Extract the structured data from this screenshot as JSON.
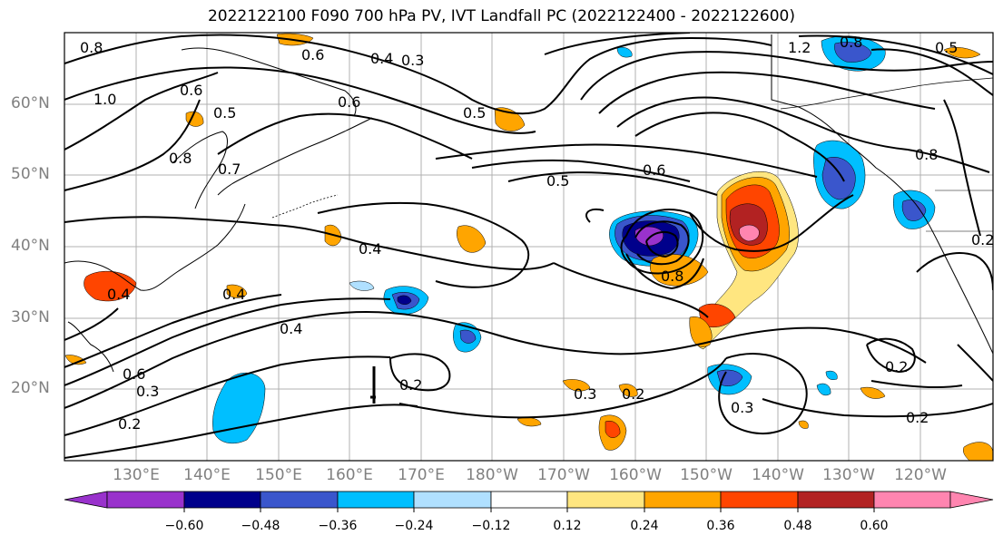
{
  "title": "2022122100 F090 700 hPa PV, IVT Landfall PC (2022122400 - 2022122600)",
  "latitude_labels": [
    "60°N",
    "50°N",
    "40°N",
    "30°N",
    "20°N"
  ],
  "longitude_labels": [
    "130°E",
    "140°E",
    "150°E",
    "160°E",
    "170°E",
    "180°W",
    "170°W",
    "160°W",
    "150°W",
    "140°W",
    "130°W",
    "120°W"
  ],
  "colorbar": {
    "tick_labels": [
      "−0.60",
      "−0.48",
      "−0.36",
      "−0.24",
      "−0.12",
      "0.12",
      "0.24",
      "0.36",
      "0.48",
      "0.60"
    ],
    "colors": [
      "#9932CC",
      "#00008B",
      "#3A56CC",
      "#00BFFF",
      "#B0E0FF",
      "#FFFFFF",
      "#FFE680",
      "#FFA500",
      "#FF4500",
      "#B22222",
      "#FF85B0"
    ]
  },
  "contour_labels": [
    "0.8",
    "0.6",
    "0.3",
    "1.0",
    "0.6",
    "0.4",
    "0.5",
    "0.5",
    "0.8",
    "0.7",
    "1.2",
    "0.8",
    "0.5",
    "0.6",
    "0.5",
    "0.6",
    "0.4",
    "0.8",
    "0.4",
    "0.4",
    "0.4",
    "0.6",
    "0.3",
    "0.2",
    "0.2",
    "0.3",
    "0.2",
    "0.2",
    "0.3",
    "0.2",
    "0.2",
    "0.8"
  ]
}
